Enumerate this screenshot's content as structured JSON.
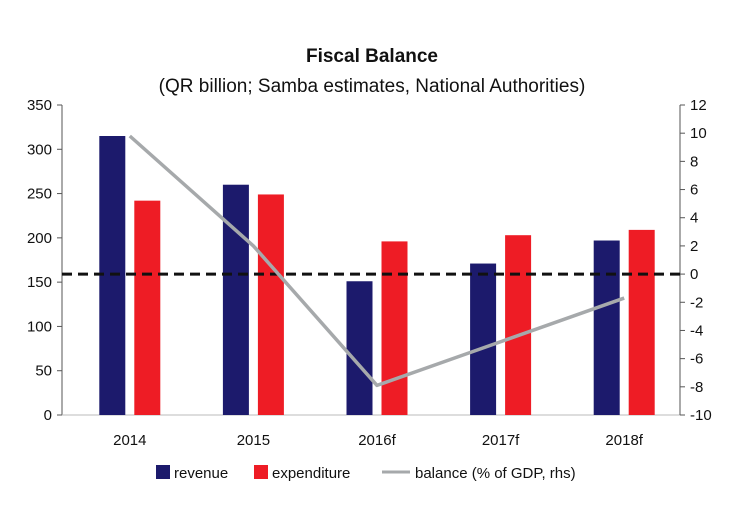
{
  "chart_data": {
    "type": "bar",
    "title": "Fiscal Balance",
    "subtitle": "(QR billion; Samba estimates, National Authorities)",
    "categories": [
      "2014",
      "2015",
      "2016f",
      "2017f",
      "2018f"
    ],
    "series": [
      {
        "name": "revenue",
        "type": "bar",
        "axis": "left",
        "color": "#1c1a6c",
        "values": [
          315,
          260,
          151,
          171,
          197
        ]
      },
      {
        "name": "expenditure",
        "type": "bar",
        "axis": "left",
        "color": "#ee1c25",
        "values": [
          242,
          249,
          196,
          203,
          209
        ]
      },
      {
        "name": "balance (% of GDP, rhs)",
        "type": "line",
        "axis": "right",
        "color": "#a6a9ab",
        "values": [
          9.8,
          2.0,
          -7.9,
          -4.8,
          -1.7
        ]
      }
    ],
    "zero_line": {
      "axis": "right",
      "value": 0,
      "color": "#111111",
      "style": "dashed"
    },
    "ylim_left": [
      0,
      350
    ],
    "yticks_left": [
      0,
      50,
      100,
      150,
      200,
      250,
      300,
      350
    ],
    "ylim_right": [
      -10,
      12
    ],
    "yticks_right": [
      -10,
      -8,
      -6,
      -4,
      -2,
      0,
      2,
      4,
      6,
      8,
      10,
      12
    ],
    "xlabel": "",
    "ylabel": "",
    "legend": {
      "position": "bottom"
    }
  }
}
